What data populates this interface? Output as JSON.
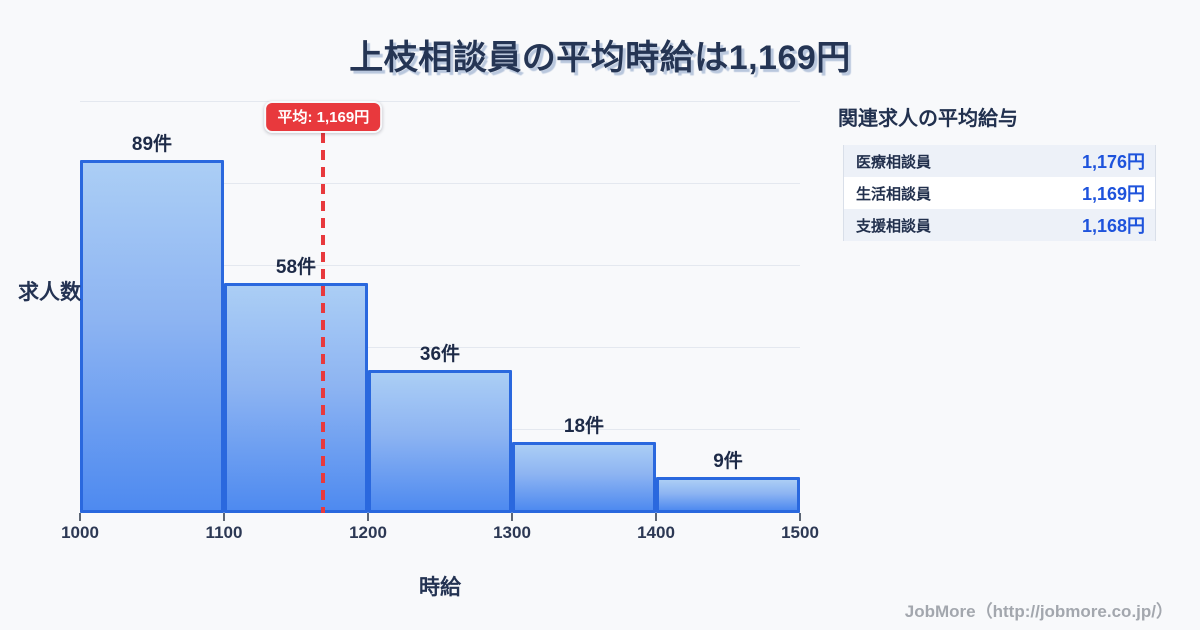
{
  "page": {
    "title": "上枝相談員の平均時給は1,169円",
    "footer": "JobMore（http://jobmore.co.jp/）"
  },
  "chart_data": {
    "type": "bar",
    "title": "上枝相談員の平均時給は1,169円",
    "xlabel": "時給",
    "ylabel": "求人数",
    "categories": [
      "1000-1100",
      "1100-1200",
      "1200-1300",
      "1300-1400",
      "1400-1500"
    ],
    "values": [
      89,
      58,
      36,
      18,
      9
    ],
    "bar_labels": [
      "89件",
      "58件",
      "36件",
      "18件",
      "9件"
    ],
    "x_ticks": [
      1000,
      1100,
      1200,
      1300,
      1400,
      1500
    ],
    "x_range": [
      1000,
      1500
    ],
    "ylim": [
      0,
      104
    ],
    "grid": "horizontal",
    "legend": "none",
    "average": {
      "value": 1169,
      "label": "平均: 1,169円"
    },
    "colors": {
      "bar_border": "#2a68de",
      "bar_gradient_top": "#abcef5",
      "bar_gradient_bottom": "#4e8af0",
      "average_red": "#e8393d",
      "background": "#f8f9fb",
      "title_text": "#253554"
    }
  },
  "side_panel": {
    "title": "関連求人の平均給与",
    "rows": [
      {
        "label": "医療相談員",
        "value": "1,176円"
      },
      {
        "label": "生活相談員",
        "value": "1,169円"
      },
      {
        "label": "支援相談員",
        "value": "1,168円"
      }
    ]
  }
}
